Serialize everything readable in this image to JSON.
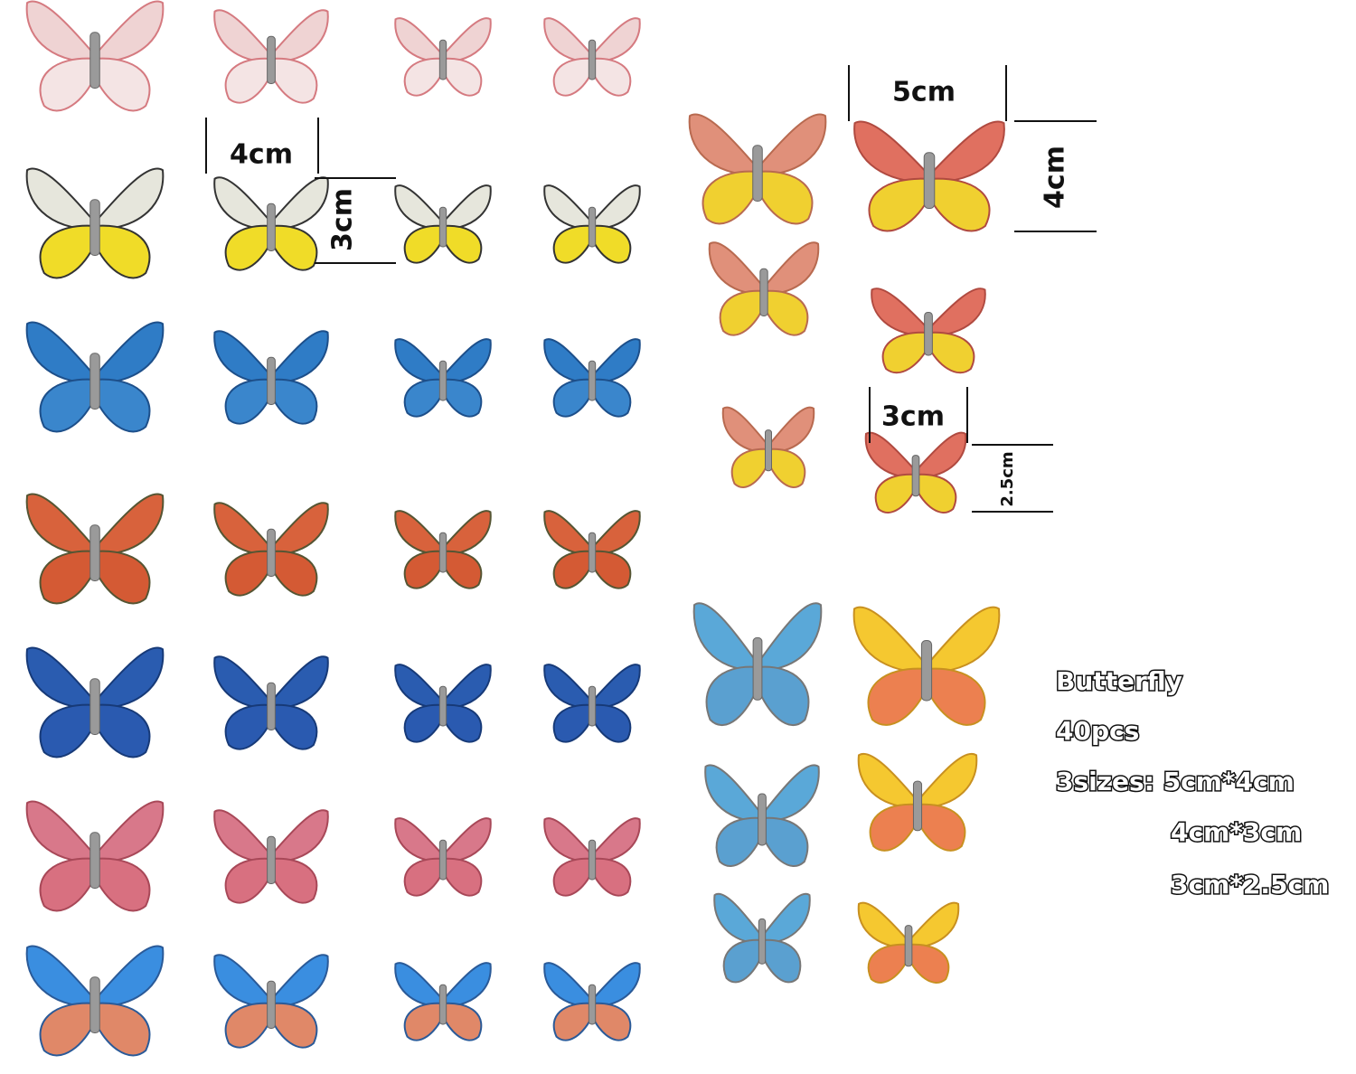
{
  "measurements": {
    "left_width": "4cm",
    "left_height": "3cm",
    "right_width": "5cm",
    "right_height": "4cm",
    "small_width": "3cm",
    "small_height": "2.5cm"
  },
  "info": {
    "title": "Butterfly",
    "count": "40pcs",
    "sizes_1": "3sizes: 5cm*4cm",
    "sizes_2": "4cm*3cm",
    "sizes_3": "3cm*2.5cm"
  }
}
